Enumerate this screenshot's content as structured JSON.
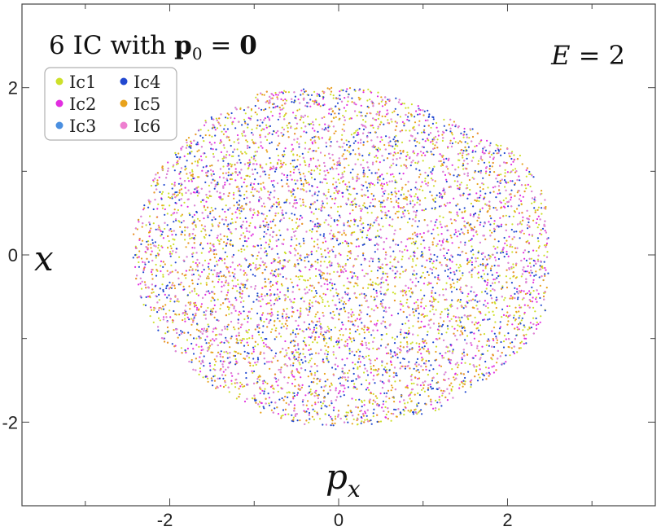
{
  "chart_data": {
    "type": "scatter",
    "title": "6 IC with p₀ = 0",
    "title_parts": {
      "prefix": "6 IC with ",
      "symbol": "p",
      "subscript": "0",
      "equals": " = ",
      "value": "0"
    },
    "annotation": "E = 2",
    "annotation_parts": {
      "var": "E",
      "equals": " = ",
      "value": "2"
    },
    "xlabel": "p",
    "xlabel_subscript": "x",
    "ylabel": "x",
    "xlim": [
      -3.75,
      3.75
    ],
    "ylim": [
      -3.0,
      3.0
    ],
    "xticks": [
      -2,
      0,
      2
    ],
    "yticks": [
      -2,
      0,
      2
    ],
    "grid": false,
    "legend_position": "top-left",
    "region": {
      "description_points": [
        [
          -2.45,
          0.2
        ],
        [
          -2.2,
          0.95
        ],
        [
          -1.6,
          1.6
        ],
        [
          -0.9,
          1.95
        ],
        [
          -0.3,
          2.0
        ],
        [
          0.3,
          2.0
        ],
        [
          0.9,
          1.8
        ],
        [
          1.6,
          1.5
        ],
        [
          2.15,
          1.2
        ],
        [
          2.45,
          0.7
        ],
        [
          2.5,
          0.0
        ],
        [
          2.45,
          -0.7
        ],
        [
          2.25,
          -1.05
        ],
        [
          1.8,
          -1.45
        ],
        [
          1.2,
          -1.85
        ],
        [
          0.5,
          -2.02
        ],
        [
          -0.3,
          -2.05
        ],
        [
          -0.9,
          -1.9
        ],
        [
          -1.55,
          -1.55
        ],
        [
          -2.1,
          -1.0
        ],
        [
          -2.4,
          -0.45
        ]
      ]
    },
    "series": [
      {
        "name": "Ic1",
        "color": "#cde02a"
      },
      {
        "name": "Ic2",
        "color": "#e22ee0"
      },
      {
        "name": "Ic3",
        "color": "#4a8fe0"
      },
      {
        "name": "Ic4",
        "color": "#2148d0"
      },
      {
        "name": "Ic5",
        "color": "#e8a21c"
      },
      {
        "name": "Ic6",
        "color": "#ee7fd0"
      }
    ]
  }
}
